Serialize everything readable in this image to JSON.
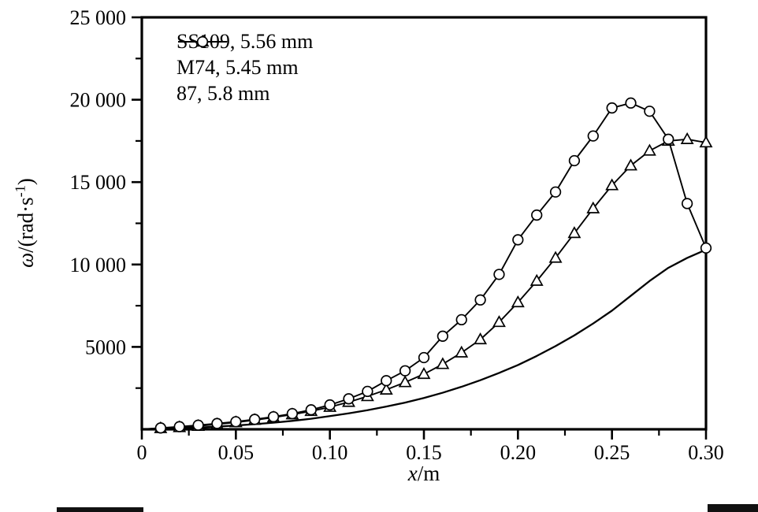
{
  "figure": {
    "background": "#ffffff",
    "axis_color": "#000000"
  },
  "chart_data": {
    "type": "line",
    "title": "",
    "xlabel_var": "x",
    "xlabel_rest": "/m",
    "ylabel_var": "ω",
    "ylabel_mid": "/(rad·s",
    "ylabel_sup": "-1",
    "ylabel_end": ")",
    "xlim": [
      0,
      0.3
    ],
    "ylim": [
      0,
      25000
    ],
    "x_ticks": [
      0,
      0.05,
      0.1,
      0.15,
      0.2,
      0.25,
      0.3
    ],
    "x_tick_labels": [
      "0",
      "0.05",
      "0.10",
      "0.15",
      "0.20",
      "0.25",
      "0.30"
    ],
    "y_ticks": [
      5000,
      10000,
      15000,
      20000,
      25000
    ],
    "y_tick_labels": [
      "5000",
      "10 000",
      "15 000",
      "20 000",
      "25 000"
    ],
    "x_minor_step": 0.025,
    "y_minor_step": 2500,
    "grid": false,
    "legend_position": "top-left",
    "x": [
      0,
      0.01,
      0.02,
      0.03,
      0.04,
      0.05,
      0.06,
      0.07,
      0.08,
      0.09,
      0.1,
      0.11,
      0.12,
      0.13,
      0.14,
      0.15,
      0.16,
      0.17,
      0.18,
      0.19,
      0.2,
      0.21,
      0.22,
      0.23,
      0.24,
      0.25,
      0.26,
      0.27,
      0.28,
      0.29,
      0.3
    ],
    "series": [
      {
        "name": "SS109, 5.56 mm",
        "marker": "none",
        "values": [
          0,
          25,
          60,
          105,
          160,
          230,
          310,
          400,
          510,
          640,
          800,
          970,
          1160,
          1380,
          1620,
          1900,
          2220,
          2580,
          2980,
          3420,
          3900,
          4450,
          5050,
          5700,
          6420,
          7200,
          8100,
          9000,
          9800,
          10400,
          10900
        ]
      },
      {
        "name": "M74, 5.45 mm",
        "marker": "triangle",
        "values": [
          0,
          60,
          120,
          200,
          300,
          420,
          560,
          720,
          900,
          1100,
          1350,
          1650,
          2000,
          2400,
          2850,
          3350,
          3950,
          4650,
          5450,
          6500,
          7700,
          9000,
          10400,
          11900,
          13400,
          14800,
          16000,
          16900,
          17500,
          17600,
          17400
        ]
      },
      {
        "name": "87, 5.8 mm",
        "marker": "circle",
        "values": [
          0,
          80,
          160,
          250,
          350,
          460,
          600,
          760,
          950,
          1180,
          1480,
          1850,
          2300,
          2950,
          3550,
          4350,
          5650,
          6650,
          7850,
          9400,
          11500,
          13000,
          14400,
          16300,
          17800,
          19500,
          19800,
          19300,
          17600,
          13700,
          11000
        ]
      }
    ]
  }
}
